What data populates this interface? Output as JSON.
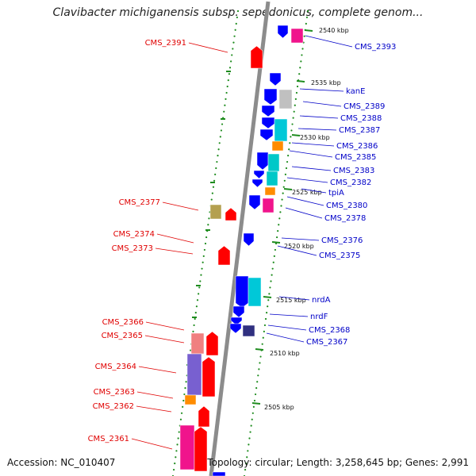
{
  "title": "Clavibacter michiganensis subsp. sepedonicus, complete genom...",
  "footer": {
    "accession": "Accession: NC_010407",
    "summary": "Topology: circular; Length: 3,258,645 bp; Genes: 2,991"
  },
  "colors": {
    "backbone": "#8c8c8c",
    "ring_dots": "#1e8c1e",
    "ticks": "#1e8c1e",
    "forward_label": "#e00000",
    "reverse_label": "#0000c8"
  },
  "kbp_ticks": [
    "2540 kbp",
    "2535 kbp",
    "2530 kbp",
    "2525 kbp",
    "2520 kbp",
    "2515 kbp",
    "2510 kbp",
    "2505 kbp"
  ],
  "left_labels": [
    "CMS_2391",
    "CMS_2377",
    "CMS_2374",
    "CMS_2373",
    "CMS_2366",
    "CMS_2365",
    "CMS_2364",
    "CMS_2363",
    "CMS_2362",
    "CMS_2361"
  ],
  "right_labels": [
    "CMS_2393",
    "kanE",
    "CMS_2389",
    "CMS_2388",
    "CMS_2387",
    "CMS_2386",
    "CMS_2385",
    "CMS_2383",
    "CMS_2382",
    "tpiA",
    "CMS_2380",
    "CMS_2378",
    "CMS_2376",
    "CMS_2375",
    "nrdA",
    "nrdF",
    "CMS_2368",
    "CMS_2367"
  ]
}
